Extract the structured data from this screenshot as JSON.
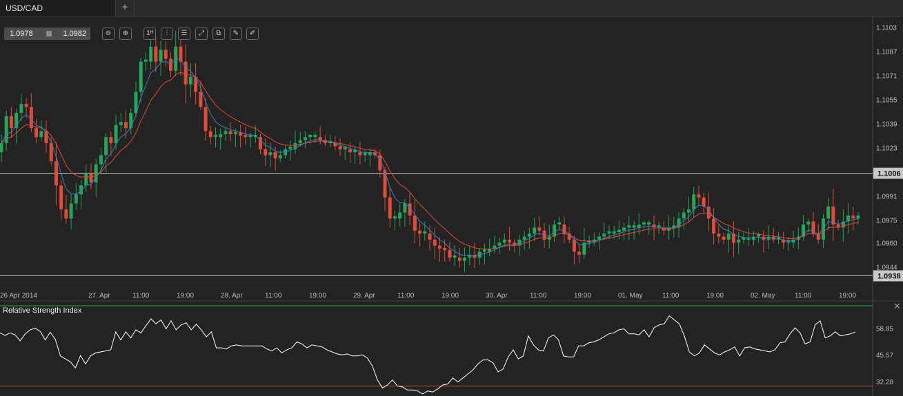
{
  "tabs": [
    {
      "label": "USD/CAD"
    }
  ],
  "add_tab_label": "+",
  "quote": {
    "bid": "1.0978",
    "ask": "1.0982"
  },
  "toolbar": [
    {
      "name": "zoom-out-icon",
      "glyph": "⊖"
    },
    {
      "name": "zoom-in-icon",
      "glyph": "⊕"
    },
    {
      "name": "timeframe-icon",
      "glyph": "1ᴴ"
    },
    {
      "name": "candlestick-icon",
      "glyph": "⫶"
    },
    {
      "name": "indicators-icon",
      "glyph": "☰"
    },
    {
      "name": "chart-type-icon",
      "glyph": "⤢"
    },
    {
      "name": "templates-icon",
      "glyph": "⧉"
    },
    {
      "name": "edit-icon",
      "glyph": "✎"
    },
    {
      "name": "draw-icon",
      "glyph": "✐"
    }
  ],
  "colors": {
    "background": "#232323",
    "bull": "#27a35a",
    "bear": "#e24a3a",
    "ma_fast": "#3f7fbf",
    "ma_slow": "#e24a3a",
    "rsi_line": "#ffffff",
    "rsi_upper": "#27a35a",
    "rsi_lower": "#e24a3a",
    "hline": "#c8c8c8",
    "price_box": "#c9c9c9"
  },
  "chart_data": [
    {
      "type": "candlestick",
      "symbol": "USD/CAD",
      "ylim": [
        1.093,
        1.111
      ],
      "y_ticks": [
        "1.1103",
        "1.1087",
        "1.1071",
        "1.1055",
        "1.1039",
        "1.1023",
        "1.1006",
        "1.0991",
        "1.0975",
        "1.0960",
        "1.0944",
        "1.0938"
      ],
      "x_labels": [
        "26 Apr 2014",
        "27. Apr",
        "11:00",
        "19:00",
        "28. Apr",
        "11:00",
        "19:00",
        "29. Apr",
        "11:00",
        "19:00",
        "30. Apr",
        "11:00",
        "19:00",
        "01. May",
        "11:00",
        "19:00",
        "02. May",
        "11:00",
        "19:00"
      ],
      "horizontal_lines": [
        {
          "value": 1.1006,
          "label": "1.1006"
        },
        {
          "value": 1.0938,
          "label": "1.0938"
        }
      ],
      "closes": [
        1.1026,
        1.1044,
        1.1036,
        1.1046,
        1.1052,
        1.105,
        1.1036,
        1.103,
        1.1034,
        1.1026,
        1.1014,
        1.0998,
        1.0982,
        1.0976,
        1.0986,
        1.0992,
        1.0998,
        1.1006,
        1.1,
        1.1012,
        1.1018,
        1.103,
        1.1026,
        1.1038,
        1.104,
        1.1036,
        1.1046,
        1.106,
        1.108,
        1.108,
        1.109,
        1.108,
        1.1088,
        1.1082,
        1.1074,
        1.109,
        1.108,
        1.1065,
        1.107,
        1.106,
        1.105,
        1.1034,
        1.103,
        1.103,
        1.1032,
        1.1034,
        1.1032,
        1.1033,
        1.1031,
        1.103,
        1.103,
        1.103,
        1.1022,
        1.1018,
        1.102,
        1.1016,
        1.1018,
        1.1022,
        1.1022,
        1.1026,
        1.1028,
        1.103,
        1.103,
        1.103,
        1.1028,
        1.1026,
        1.1026,
        1.1024,
        1.1022,
        1.1022,
        1.102,
        1.102,
        1.1018,
        1.1018,
        1.102,
        1.1018,
        1.1008,
        1.099,
        1.0976,
        1.0976,
        1.098,
        1.0986,
        1.0978,
        1.0968,
        1.0966,
        1.0966,
        1.0962,
        1.0958,
        1.0956,
        1.0955,
        1.095,
        1.095,
        1.0948,
        1.095,
        1.0952,
        1.095,
        1.0954,
        1.0954,
        1.0956,
        1.0958,
        1.096,
        1.0962,
        1.096,
        1.0958,
        1.0962,
        1.0964,
        1.0966,
        1.097,
        1.0968,
        1.0962,
        1.0964,
        1.0972,
        1.0972,
        1.0966,
        1.0962,
        1.0954,
        1.0952,
        1.096,
        1.096,
        1.0962,
        1.0964,
        1.0966,
        1.0966,
        1.0967,
        1.0968,
        1.097,
        1.097,
        1.097,
        1.0972,
        1.0972,
        1.0972,
        1.097,
        1.097,
        1.0968,
        1.097,
        1.097,
        1.0976,
        1.098,
        1.0982,
        1.0992,
        1.099,
        1.0984,
        1.0976,
        1.0966,
        1.0964,
        1.0962,
        1.0966,
        1.096,
        1.0962,
        1.0962,
        1.0962,
        1.0964,
        1.0964,
        1.0962,
        1.0964,
        1.0962,
        1.0962,
        1.096,
        1.096,
        1.0962,
        1.0964,
        1.0972,
        1.0974,
        1.0966,
        1.0962,
        1.0976,
        1.0984,
        1.0972,
        1.097,
        1.0974,
        1.0978,
        1.0976,
        1.0978
      ]
    },
    {
      "type": "line",
      "title": "Relative Strength Index",
      "ylim": [
        25,
        70
      ],
      "y_ticks": [
        "58.85",
        "45.57",
        "32.28"
      ],
      "levels": [
        70,
        30
      ],
      "values": [
        56.5,
        55.2,
        56.5,
        55.5,
        52.5,
        56.0,
        58.0,
        58.8,
        57.2,
        53.0,
        56.8,
        53.2,
        45.0,
        43.5,
        42.0,
        39.0,
        45.2,
        41.0,
        45.0,
        46.5,
        47.0,
        47.5,
        48.0,
        57.0,
        53.0,
        57.0,
        54.0,
        58.0,
        56.5,
        60.0,
        63.5,
        61.0,
        63.0,
        58.5,
        62.5,
        58.0,
        60.5,
        61.5,
        58.0,
        60.8,
        58.0,
        54.5,
        57.0,
        49.0,
        49.0,
        48.5,
        50.0,
        50.5,
        50.0,
        50.0,
        50.0,
        50.0,
        50.0,
        48.5,
        47.5,
        49.0,
        46.5,
        48.0,
        49.0,
        52.0,
        51.0,
        49.0,
        50.5,
        50.0,
        49.5,
        48.0,
        47.0,
        46.0,
        45.5,
        46.0,
        45.0,
        45.0,
        45.5,
        44.0,
        40.0,
        33.0,
        29.0,
        30.5,
        33.0,
        30.0,
        29.5,
        28.0,
        28.0,
        27.5,
        26.0,
        27.5,
        27.0,
        28.5,
        30.5,
        31.0,
        34.0,
        32.0,
        34.0,
        36.0,
        38.0,
        41.0,
        43.0,
        43.0,
        41.5,
        37.0,
        38.5,
        44.5,
        48.0,
        43.5,
        45.0,
        55.0,
        50.5,
        48.0,
        47.5,
        54.0,
        55.5,
        53.0,
        45.0,
        44.5,
        44.5,
        50.0,
        50.0,
        51.5,
        52.0,
        53.0,
        54.5,
        56.0,
        56.5,
        58.0,
        58.5,
        56.0,
        56.0,
        55.5,
        58.0,
        54.5,
        59.0,
        60.5,
        61.0,
        65.0,
        63.0,
        61.0,
        55.0,
        47.0,
        45.0,
        46.5,
        50.5,
        48.5,
        46.5,
        45.5,
        47.0,
        48.0,
        49.5,
        45.0,
        49.0,
        49.5,
        48.5,
        48.0,
        47.5,
        47.0,
        48.0,
        51.5,
        52.0,
        56.0,
        59.0,
        56.5,
        51.0,
        52.0,
        60.5,
        62.5,
        54.0,
        55.0,
        57.0,
        55.0,
        55.5,
        56.0,
        57.0
      ]
    }
  ]
}
